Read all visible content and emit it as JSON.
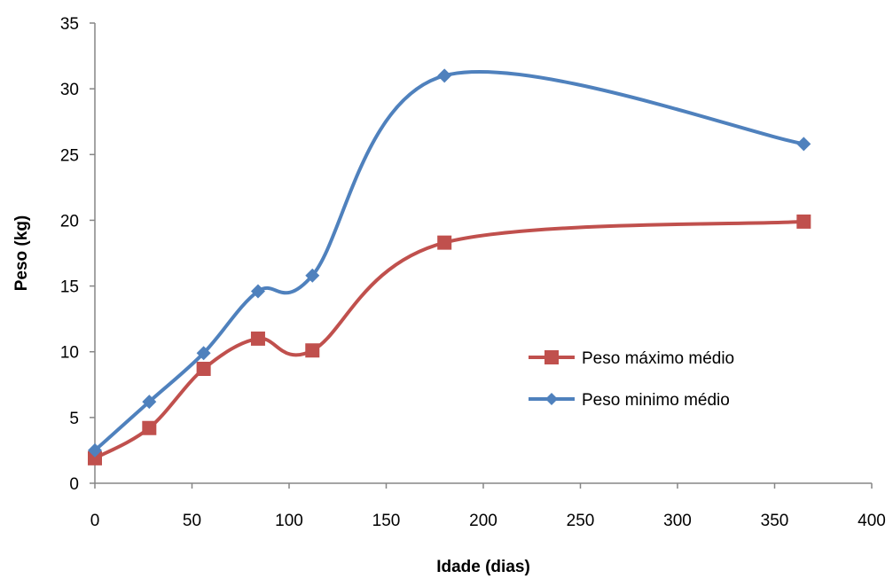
{
  "chart_data": {
    "type": "line",
    "xlabel": "Idade (dias)",
    "ylabel": "Peso (kg)",
    "xlim": [
      0,
      400
    ],
    "ylim": [
      0,
      35
    ],
    "xticks": [
      0,
      50,
      100,
      150,
      200,
      250,
      300,
      350,
      400
    ],
    "yticks": [
      0,
      5,
      10,
      15,
      20,
      25,
      30,
      35
    ],
    "grid": false,
    "smooth": true,
    "legend_position": "right-center",
    "series": [
      {
        "name": "Peso máximo médio",
        "color": "#c0504d",
        "marker": "square",
        "x": [
          0,
          28,
          56,
          84,
          112,
          180,
          365
        ],
        "y": [
          1.9,
          4.2,
          8.7,
          11.0,
          10.1,
          18.3,
          19.9
        ]
      },
      {
        "name": "Peso minimo médio",
        "color": "#4f81bd",
        "marker": "diamond",
        "x": [
          0,
          28,
          56,
          84,
          112,
          180,
          365
        ],
        "y": [
          2.5,
          6.2,
          9.9,
          14.6,
          15.8,
          31.0,
          25.8
        ]
      }
    ]
  }
}
